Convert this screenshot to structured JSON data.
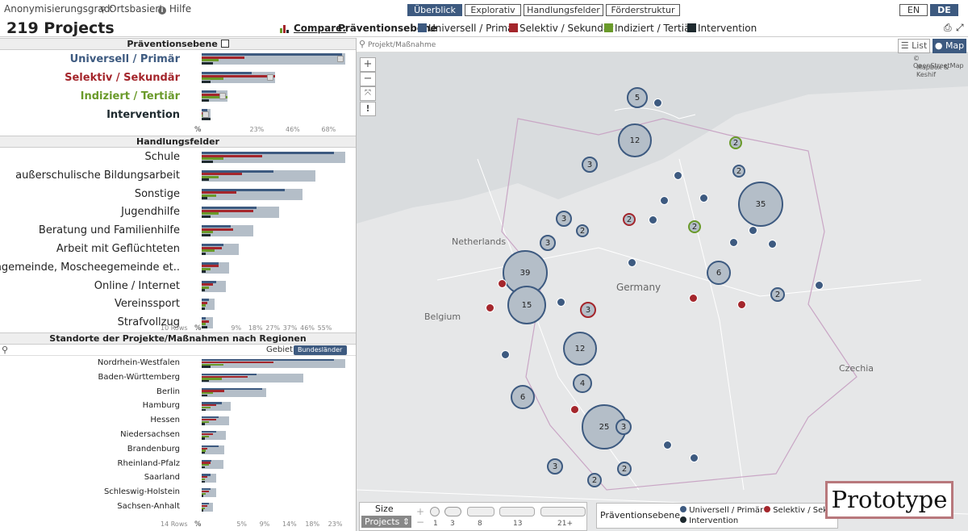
{
  "topbar": {
    "anonym_label": "Anonymisierungsgrad:",
    "ortsbasiert": "Ortsbasiert",
    "hilfe": "Hilfe",
    "tabs": [
      "Überblick",
      "Explorativ",
      "Handlungsfelder",
      "Förderstruktur"
    ],
    "lang": [
      "EN",
      "DE"
    ]
  },
  "header": {
    "project_count": "219 Projects",
    "compare_label": "Compare:",
    "compare_title": "Präventionsebene",
    "legend": [
      {
        "label": "Universell / Primär",
        "color": "#3d5a80"
      },
      {
        "label": "Selektiv / Sekundär",
        "color": "#a4262c"
      },
      {
        "label": "Indiziert / Tertiär",
        "color": "#6a9a2a"
      },
      {
        "label": "Intervention",
        "color": "#1e2a2f"
      }
    ]
  },
  "praeventionsebene": {
    "title": "Präventionsebene",
    "rows": [
      {
        "label": "Universell / Primär",
        "color": "#3d5a80",
        "total": 100,
        "s": [
          98,
          30,
          12,
          8
        ]
      },
      {
        "label": "Selektiv / Sekundär",
        "color": "#a4262c",
        "total": 51,
        "s": [
          35,
          51,
          15,
          6
        ]
      },
      {
        "label": "Indiziert / Tertiär",
        "color": "#6a9a2a",
        "total": 18,
        "s": [
          10,
          16,
          18,
          5
        ]
      },
      {
        "label": "Intervention",
        "color": "#1e2a2f",
        "total": 6,
        "s": [
          4,
          5,
          3,
          6
        ]
      }
    ],
    "axis": [
      "%",
      "23%",
      "46%",
      "68%"
    ]
  },
  "handlungsfelder": {
    "title": "Handlungsfelder",
    "rows": [
      {
        "label": "Schule",
        "total": 100,
        "s": [
          92,
          42,
          15,
          8
        ]
      },
      {
        "label": "außerschulische Bildungsarbeit",
        "total": 79,
        "s": [
          50,
          28,
          12,
          5
        ]
      },
      {
        "label": "Sonstige",
        "total": 70,
        "s": [
          58,
          24,
          10,
          4
        ]
      },
      {
        "label": "Jugendhilfe",
        "total": 54,
        "s": [
          38,
          36,
          12,
          6
        ]
      },
      {
        "label": "Beratung und Familienhilfe",
        "total": 36,
        "s": [
          20,
          22,
          8,
          6
        ]
      },
      {
        "label": "Arbeit mit Geflüchteten",
        "total": 26,
        "s": [
          15,
          14,
          9,
          3
        ]
      },
      {
        "label": "Kirchengemeinde, Moscheegemeinde et..",
        "total": 19,
        "s": [
          12,
          12,
          6,
          3
        ]
      },
      {
        "label": "Online / Internet",
        "total": 17,
        "s": [
          10,
          8,
          5,
          2
        ]
      },
      {
        "label": "Vereinssport",
        "total": 9,
        "s": [
          5,
          4,
          3,
          2
        ]
      },
      {
        "label": "Strafvollzug",
        "total": 8,
        "s": [
          3,
          5,
          3,
          4
        ]
      }
    ],
    "rows_note": "10 Rows",
    "axis": [
      "%",
      "9%",
      "18%",
      "27%",
      "37%",
      "46%",
      "55%"
    ]
  },
  "standorte": {
    "title": "Standorte der Projekte/Maßnahmen nach Regionen",
    "gebiet_label": "Gebiet :",
    "gebiet_value": "Bundesländer",
    "rows": [
      {
        "label": "Nordrhein-Westfalen",
        "total": 100,
        "s": [
          92,
          50,
          15,
          6
        ]
      },
      {
        "label": "Baden-Württemberg",
        "total": 71,
        "s": [
          38,
          32,
          14,
          5
        ]
      },
      {
        "label": "Berlin",
        "total": 45,
        "s": [
          42,
          16,
          8,
          4
        ]
      },
      {
        "label": "Hamburg",
        "total": 20,
        "s": [
          14,
          10,
          6,
          3
        ]
      },
      {
        "label": "Hessen",
        "total": 19,
        "s": [
          12,
          10,
          5,
          2
        ]
      },
      {
        "label": "Niedersachsen",
        "total": 17,
        "s": [
          10,
          8,
          5,
          2
        ]
      },
      {
        "label": "Brandenburg",
        "total": 16,
        "s": [
          12,
          4,
          3,
          2
        ]
      },
      {
        "label": "Rheinland-Pfalz",
        "total": 15,
        "s": [
          7,
          6,
          5,
          2
        ]
      },
      {
        "label": "Saarland",
        "total": 10,
        "s": [
          6,
          4,
          2,
          2
        ]
      },
      {
        "label": "Schleswig-Holstein",
        "total": 10,
        "s": [
          6,
          5,
          3,
          1
        ]
      },
      {
        "label": "Sachsen-Anhalt",
        "total": 8,
        "s": [
          5,
          4,
          2,
          1
        ]
      }
    ],
    "rows_note": "14 Rows",
    "axis": [
      "%",
      "5%",
      "9%",
      "14%",
      "18%",
      "23%"
    ]
  },
  "map": {
    "search_placeholder": "Projekt/Maßnahme",
    "list_label": "List",
    "map_label": "Map",
    "credit1": "© OpenStreetMap",
    "credit2": "Mapbox & Keshif",
    "country_labels": {
      "netherlands": "Netherlands",
      "belgium": "Belgium",
      "germany": "Germany",
      "czechia": "Czechia"
    },
    "clusters": [
      "5",
      "12",
      "2",
      "2",
      "3",
      "35",
      "3",
      "2",
      "2",
      "2",
      "3",
      "39",
      "6",
      "2",
      "15",
      "3",
      "12",
      "4",
      "6",
      "2",
      "25",
      "3",
      "3",
      "2",
      "2"
    ],
    "size_legend": {
      "title1": "Size",
      "title2": "Projects",
      "values": [
        "1",
        "3",
        "8",
        "13",
        "21+"
      ]
    },
    "bottom_legend": {
      "title": "Präventionsebene",
      "items": [
        "Universell / Primär",
        "Selektiv / Sekundär",
        "Intervention"
      ]
    },
    "watermark": "Prototype"
  }
}
